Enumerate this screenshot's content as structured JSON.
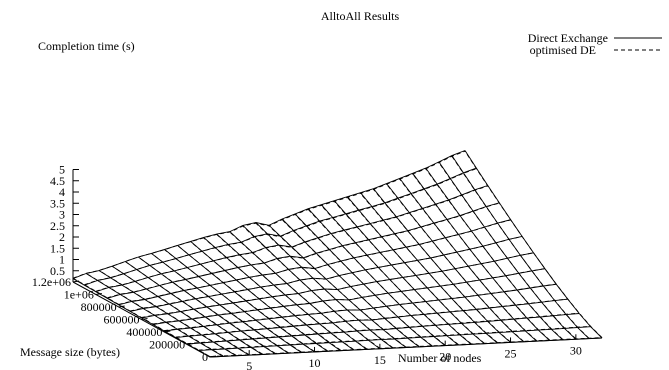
{
  "chart_data": {
    "type": "surface3d",
    "title": "AlltoAll Results",
    "zlabel": "Completion time (s)",
    "xlabel": "Number of nodes",
    "ylabel": "Message size (bytes)",
    "z_ticks": [
      "0.5",
      "1",
      "1.5",
      "2",
      "2.5",
      "3",
      "3.5",
      "4",
      "4.5",
      "5"
    ],
    "x_ticks": [
      "5",
      "10",
      "15",
      "20",
      "25",
      "30"
    ],
    "y_ticks": [
      "0",
      "200000",
      "400000",
      "600000",
      "800000",
      "1e+06",
      "1.2e+06"
    ],
    "zlim": [
      0,
      5
    ],
    "xlim": [
      2,
      32
    ],
    "ylim": [
      0,
      1200000
    ],
    "legend": {
      "position": "top-right",
      "entries": [
        {
          "name": "Direct Exchange",
          "style": "solid"
        },
        {
          "name": "optimised DE",
          "style": "dashed"
        }
      ]
    },
    "nodes": [
      2,
      3,
      4,
      5,
      6,
      7,
      8,
      9,
      10,
      11,
      12,
      13,
      14,
      15,
      16,
      17,
      18,
      19,
      20,
      21,
      22,
      23,
      24,
      25,
      26,
      27,
      28,
      29,
      30,
      31,
      32
    ],
    "message_sizes": [
      0,
      100000,
      200000,
      300000,
      400000,
      500000,
      600000,
      700000,
      800000,
      900000,
      1000000,
      1100000,
      1200000
    ],
    "series": [
      {
        "name": "Direct Exchange",
        "description": "completion time at the largest message size (1.2e+06 bytes)",
        "values": [
          0.15,
          0.35,
          0.45,
          0.62,
          0.8,
          0.97,
          1.1,
          1.25,
          1.4,
          1.55,
          1.7,
          1.82,
          1.9,
          2.15,
          2.25,
          2.1,
          2.35,
          2.55,
          2.75,
          2.9,
          3.05,
          3.2,
          3.35,
          3.5,
          3.7,
          3.9,
          4.1,
          4.3,
          4.55,
          4.8,
          5.0
        ]
      },
      {
        "name": "optimised DE",
        "description": "completion time at the largest message size (1.2e+06 bytes)",
        "values": [
          0.15,
          0.34,
          0.44,
          0.6,
          0.78,
          0.95,
          1.08,
          1.22,
          1.38,
          1.52,
          1.66,
          1.78,
          1.86,
          2.1,
          2.2,
          2.05,
          2.3,
          2.5,
          2.7,
          2.85,
          3.0,
          3.15,
          3.3,
          3.45,
          3.65,
          3.85,
          4.05,
          4.25,
          4.5,
          4.75,
          4.95
        ]
      }
    ]
  }
}
